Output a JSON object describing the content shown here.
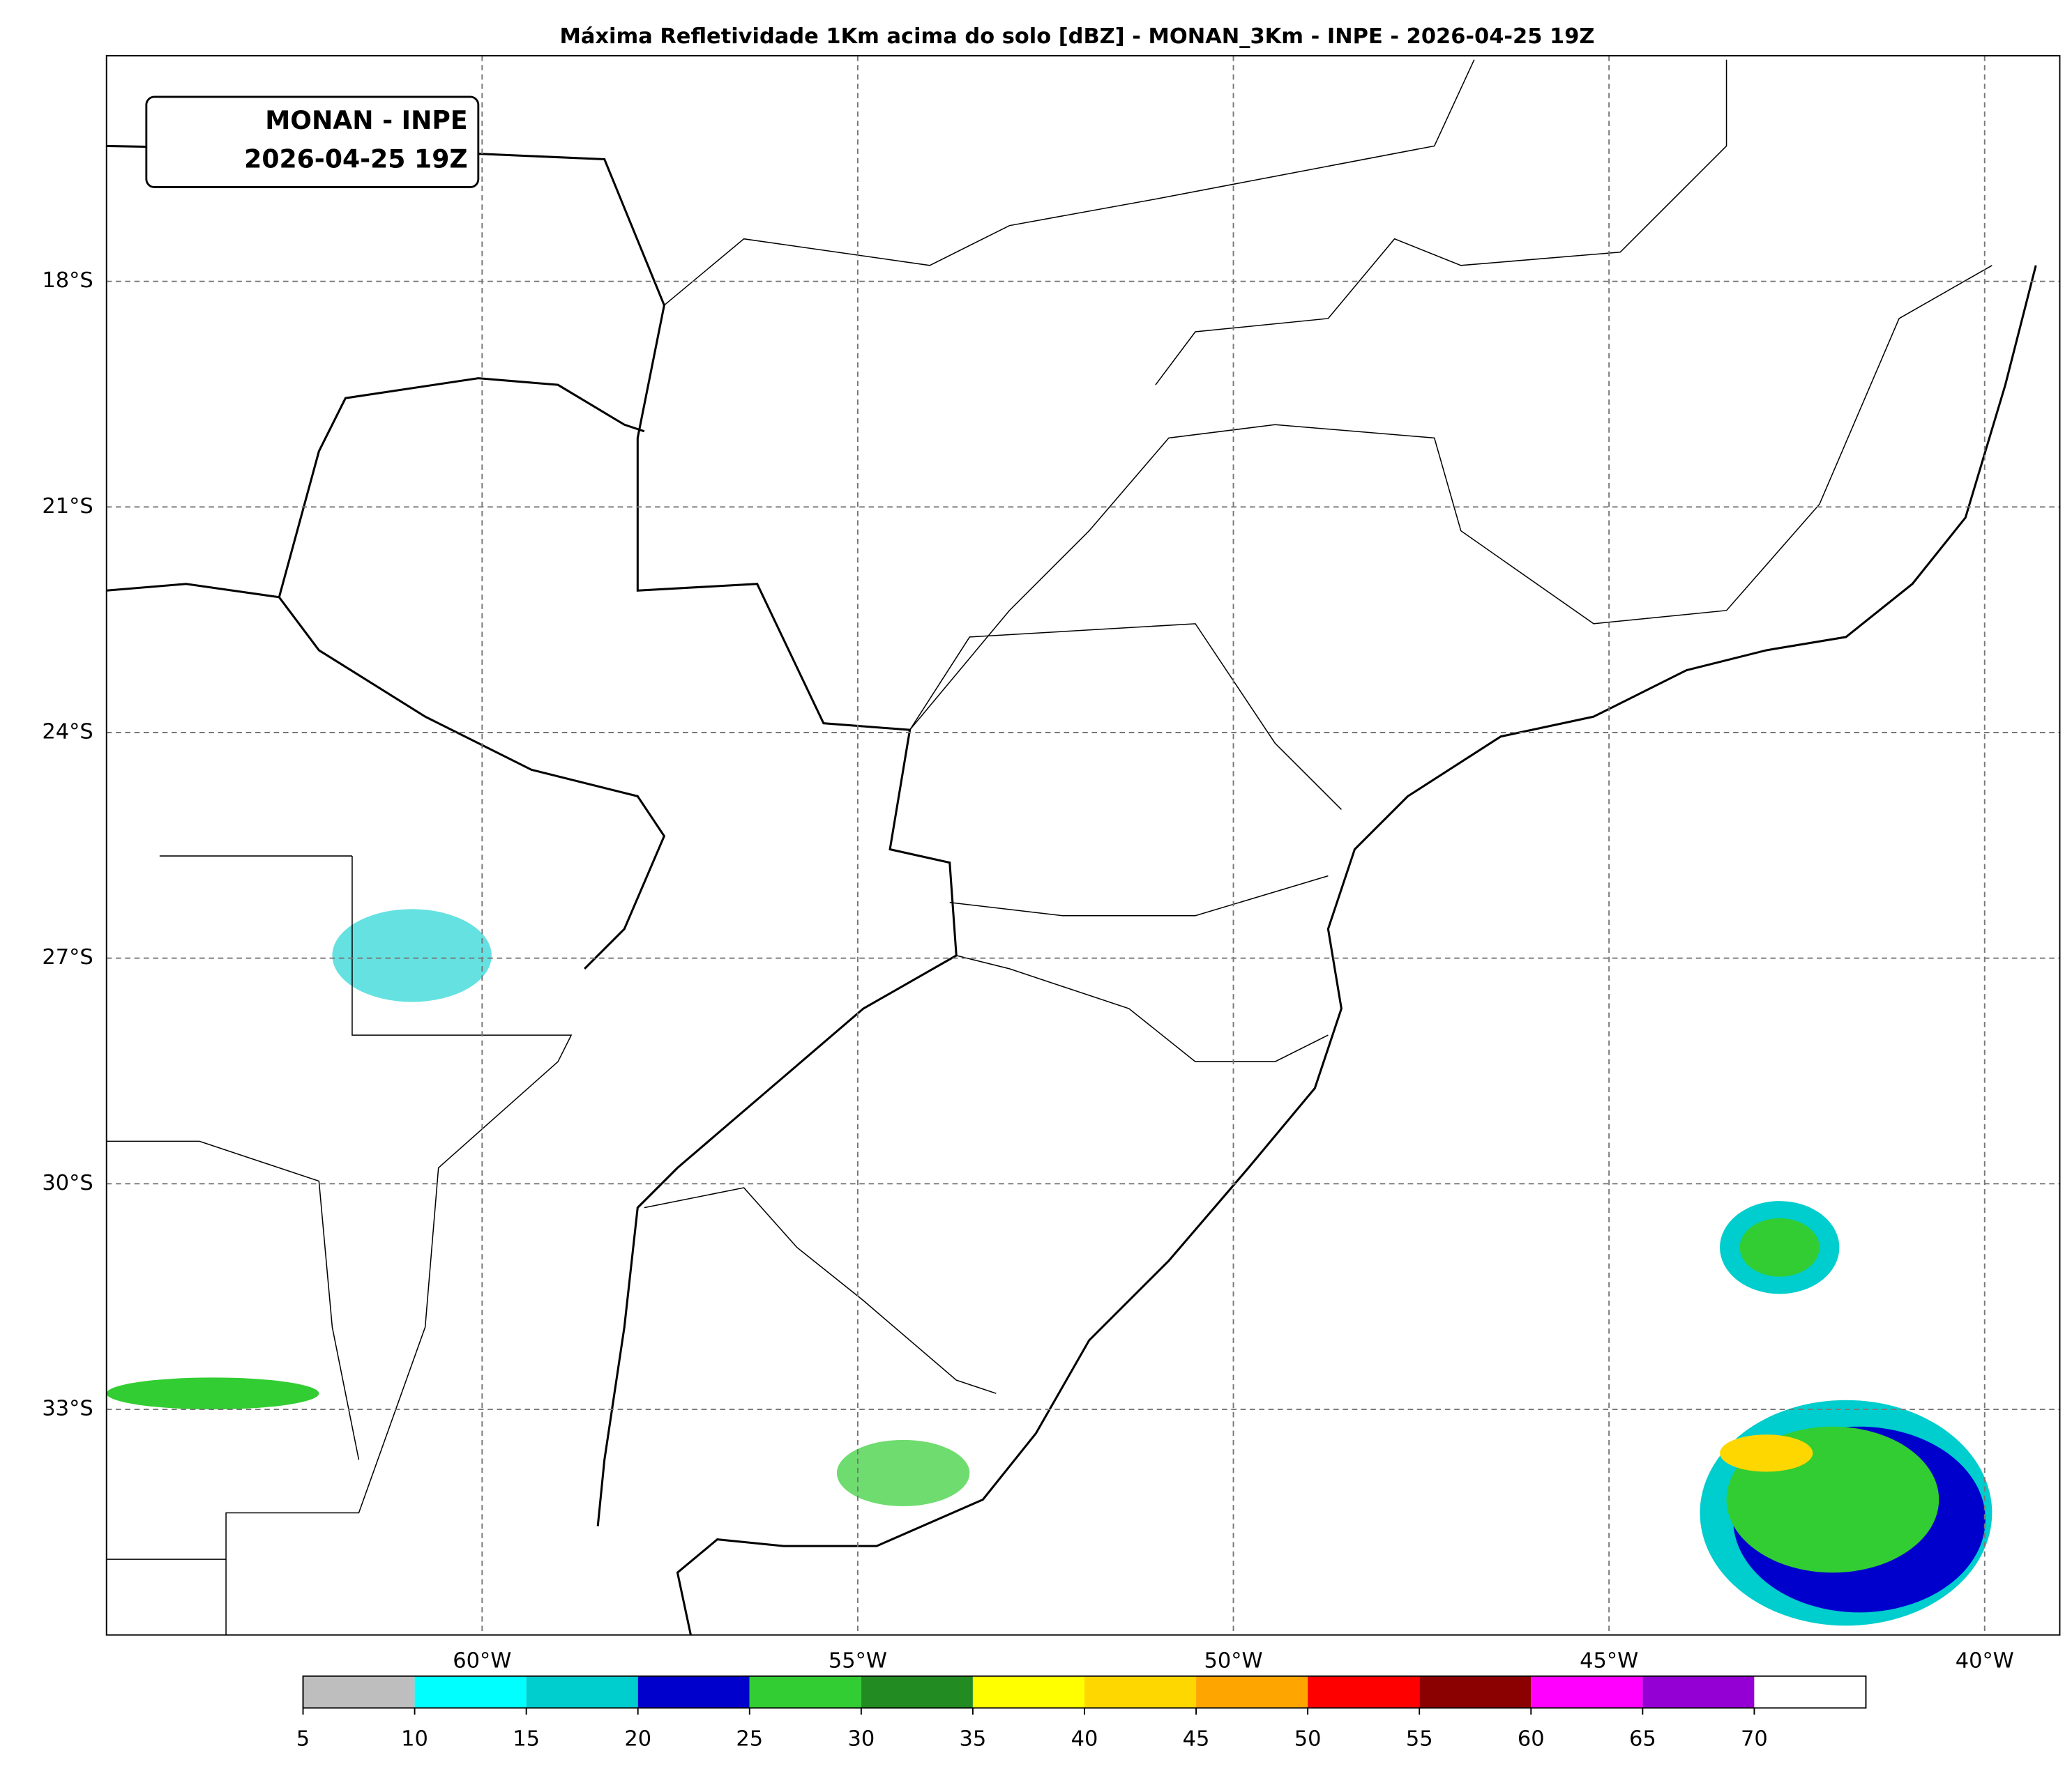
{
  "title": "Máxima Refletividade 1Km acima do solo [dBZ] - MONAN_3Km - INPE - 2026-04-25 19Z",
  "label_box": [
    "MONAN - INPE",
    "2026-04-25 19Z"
  ],
  "map": {
    "xlim": [
      -65,
      -39
    ],
    "ylim": [
      -36,
      -15
    ],
    "xticks": [
      {
        "value": -60,
        "label": "60°W"
      },
      {
        "value": -55,
        "label": "55°W"
      },
      {
        "value": -50,
        "label": "50°W"
      },
      {
        "value": -45,
        "label": "45°W"
      },
      {
        "value": -40,
        "label": "40°W"
      }
    ],
    "yticks": [
      {
        "value": -18,
        "label": "18°S"
      },
      {
        "value": -21,
        "label": "21°S"
      },
      {
        "value": -24,
        "label": "24°S"
      },
      {
        "value": -27,
        "label": "27°S"
      },
      {
        "value": -30,
        "label": "30°S"
      },
      {
        "value": -33,
        "label": "33°S"
      }
    ],
    "grid": true
  },
  "colorbar": {
    "lim": [
      5,
      75
    ],
    "ticks": [
      5,
      10,
      15,
      20,
      25,
      30,
      35,
      40,
      45,
      50,
      55,
      60,
      65,
      70
    ],
    "colors": [
      "#bebebe",
      "#00ffff",
      "#00cdcd",
      "#0000cd",
      "#32cd32",
      "#228b22",
      "#ffff00",
      "#ffd700",
      "#ffa500",
      "#ff0000",
      "#8b0000",
      "#ff00ff",
      "#9400d3",
      "#ffffff"
    ]
  }
}
